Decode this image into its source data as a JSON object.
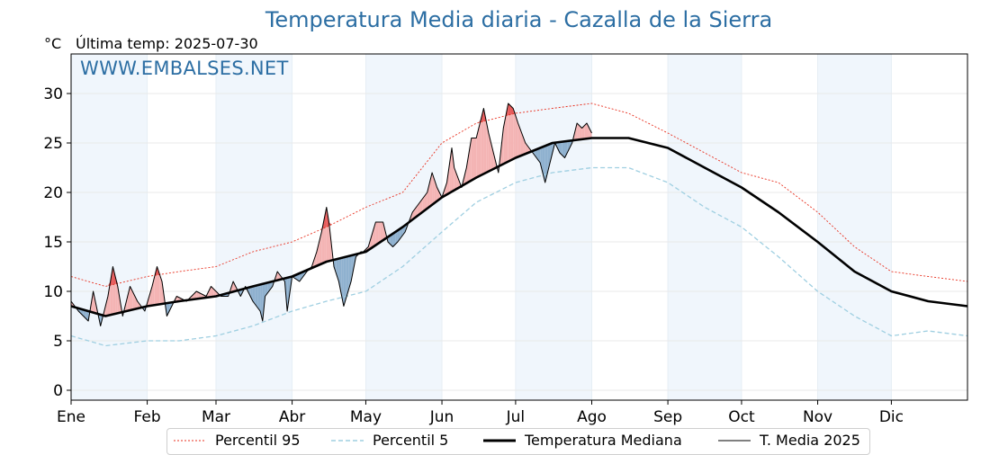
{
  "header": {
    "title": "Temperatura Media diaria - Cazalla de la Sierra",
    "unit": "°C",
    "last_temp": "Última temp: 2025-07-30",
    "watermark": "WWW.EMBALSES.NET"
  },
  "legend": {
    "p95": "Percentil 95",
    "p5": "Percentil 5",
    "median": "Temperatura Mediana",
    "t2025": "T. Media 2025"
  },
  "colors": {
    "p95": "#e8301f",
    "p5": "#9fcfe1",
    "median": "#000000",
    "t2025": "#000000",
    "above_fill": "#f4b4b4",
    "above_fill_p95": "#e65a5a",
    "below_fill": "#8fb1cf",
    "month_band": "#f0f6fc"
  },
  "chart_data": {
    "type": "line",
    "title": "Temperatura Media diaria - Cazalla de la Sierra",
    "ylabel": "°C",
    "xlim": [
      1,
      366
    ],
    "ylim": [
      -1,
      34
    ],
    "y_ticks": [
      0,
      5,
      10,
      15,
      20,
      25,
      30
    ],
    "months": [
      {
        "label": "Ene",
        "day": 1
      },
      {
        "label": "Feb",
        "day": 32
      },
      {
        "label": "Mar",
        "day": 60
      },
      {
        "label": "Abr",
        "day": 91
      },
      {
        "label": "May",
        "day": 121
      },
      {
        "label": "Jun",
        "day": 152
      },
      {
        "label": "Jul",
        "day": 182
      },
      {
        "label": "Ago",
        "day": 213
      },
      {
        "label": "Sep",
        "day": 244
      },
      {
        "label": "Oct",
        "day": 274
      },
      {
        "label": "Nov",
        "day": 305
      },
      {
        "label": "Dic",
        "day": 335
      }
    ],
    "grid": true,
    "legend_position": "bottom",
    "series": [
      {
        "name": "Percentil 95",
        "style": "dotted",
        "points": [
          [
            1,
            11.5
          ],
          [
            15,
            10.5
          ],
          [
            32,
            11.5
          ],
          [
            45,
            12
          ],
          [
            60,
            12.5
          ],
          [
            75,
            14
          ],
          [
            91,
            15
          ],
          [
            105,
            16.5
          ],
          [
            121,
            18.5
          ],
          [
            136,
            20
          ],
          [
            152,
            25
          ],
          [
            166,
            27
          ],
          [
            182,
            28
          ],
          [
            197,
            28.5
          ],
          [
            213,
            29
          ],
          [
            228,
            28
          ],
          [
            244,
            26
          ],
          [
            259,
            24
          ],
          [
            274,
            22
          ],
          [
            289,
            21
          ],
          [
            305,
            18
          ],
          [
            320,
            14.5
          ],
          [
            335,
            12
          ],
          [
            350,
            11.5
          ],
          [
            366,
            11
          ]
        ]
      },
      {
        "name": "Percentil 5",
        "style": "dashed",
        "points": [
          [
            1,
            5.5
          ],
          [
            15,
            4.5
          ],
          [
            32,
            5
          ],
          [
            45,
            5
          ],
          [
            60,
            5.5
          ],
          [
            75,
            6.5
          ],
          [
            91,
            8
          ],
          [
            105,
            9
          ],
          [
            121,
            10
          ],
          [
            136,
            12.5
          ],
          [
            152,
            16
          ],
          [
            166,
            19
          ],
          [
            182,
            21
          ],
          [
            197,
            22
          ],
          [
            213,
            22.5
          ],
          [
            228,
            22.5
          ],
          [
            244,
            21
          ],
          [
            259,
            18.5
          ],
          [
            274,
            16.5
          ],
          [
            289,
            13.5
          ],
          [
            305,
            10
          ],
          [
            320,
            7.5
          ],
          [
            335,
            5.5
          ],
          [
            350,
            6
          ],
          [
            366,
            5.5
          ]
        ]
      },
      {
        "name": "Temperatura Mediana",
        "style": "solid-thick",
        "points": [
          [
            1,
            8.5
          ],
          [
            15,
            7.5
          ],
          [
            32,
            8.5
          ],
          [
            45,
            9
          ],
          [
            60,
            9.5
          ],
          [
            75,
            10.5
          ],
          [
            91,
            11.5
          ],
          [
            105,
            13
          ],
          [
            121,
            14
          ],
          [
            136,
            16.5
          ],
          [
            152,
            19.5
          ],
          [
            166,
            21.5
          ],
          [
            182,
            23.5
          ],
          [
            197,
            25
          ],
          [
            213,
            25.5
          ],
          [
            228,
            25.5
          ],
          [
            244,
            24.5
          ],
          [
            259,
            22.5
          ],
          [
            274,
            20.5
          ],
          [
            289,
            18
          ],
          [
            305,
            15
          ],
          [
            320,
            12
          ],
          [
            335,
            10
          ],
          [
            350,
            9
          ],
          [
            366,
            8.5
          ]
        ]
      },
      {
        "name": "T. Media 2025",
        "style": "solid-thin",
        "points": [
          [
            1,
            9
          ],
          [
            4,
            8
          ],
          [
            8,
            7
          ],
          [
            10,
            10
          ],
          [
            13,
            6.5
          ],
          [
            16,
            9.5
          ],
          [
            18,
            12.5
          ],
          [
            20,
            10.5
          ],
          [
            22,
            7.5
          ],
          [
            25,
            10.5
          ],
          [
            28,
            9
          ],
          [
            31,
            8
          ],
          [
            34,
            10.5
          ],
          [
            36,
            12.5
          ],
          [
            38,
            11
          ],
          [
            40,
            7.5
          ],
          [
            44,
            9.5
          ],
          [
            48,
            9
          ],
          [
            52,
            10
          ],
          [
            56,
            9.5
          ],
          [
            58,
            10.5
          ],
          [
            60,
            10
          ],
          [
            62,
            9.5
          ],
          [
            65,
            9.5
          ],
          [
            67,
            11
          ],
          [
            70,
            9.5
          ],
          [
            72,
            10.5
          ],
          [
            75,
            9
          ],
          [
            78,
            8
          ],
          [
            79,
            7
          ],
          [
            80,
            9.5
          ],
          [
            83,
            10.5
          ],
          [
            85,
            12
          ],
          [
            88,
            11
          ],
          [
            89,
            8
          ],
          [
            91,
            11.5
          ],
          [
            94,
            11
          ],
          [
            97,
            12
          ],
          [
            99,
            12.5
          ],
          [
            101,
            14
          ],
          [
            103,
            16
          ],
          [
            105,
            18.5
          ],
          [
            106,
            17
          ],
          [
            108,
            12.5
          ],
          [
            110,
            11
          ],
          [
            112,
            8.5
          ],
          [
            115,
            11
          ],
          [
            117,
            13.5
          ],
          [
            119,
            14
          ],
          [
            120,
            14
          ],
          [
            122,
            14.5
          ],
          [
            125,
            17
          ],
          [
            128,
            17
          ],
          [
            130,
            15
          ],
          [
            132,
            14.5
          ],
          [
            134,
            15
          ],
          [
            137,
            16
          ],
          [
            140,
            18
          ],
          [
            143,
            19
          ],
          [
            146,
            20
          ],
          [
            148,
            22
          ],
          [
            150,
            20.5
          ],
          [
            152,
            19.5
          ],
          [
            154,
            21
          ],
          [
            156,
            24.5
          ],
          [
            157,
            22.5
          ],
          [
            160,
            20.5
          ],
          [
            162,
            22.5
          ],
          [
            164,
            25.5
          ],
          [
            166,
            25.5
          ],
          [
            169,
            28.5
          ],
          [
            171,
            26
          ],
          [
            173,
            24
          ],
          [
            175,
            22
          ],
          [
            177,
            26.5
          ],
          [
            179,
            29
          ],
          [
            181,
            28.5
          ],
          [
            183,
            27
          ],
          [
            186,
            25
          ],
          [
            189,
            24
          ],
          [
            192,
            23
          ],
          [
            194,
            21
          ],
          [
            196,
            23
          ],
          [
            198,
            25
          ],
          [
            200,
            24
          ],
          [
            202,
            23.5
          ],
          [
            205,
            25
          ],
          [
            207,
            27
          ],
          [
            209,
            26.5
          ],
          [
            211,
            27
          ],
          [
            213,
            26
          ]
        ]
      }
    ]
  }
}
